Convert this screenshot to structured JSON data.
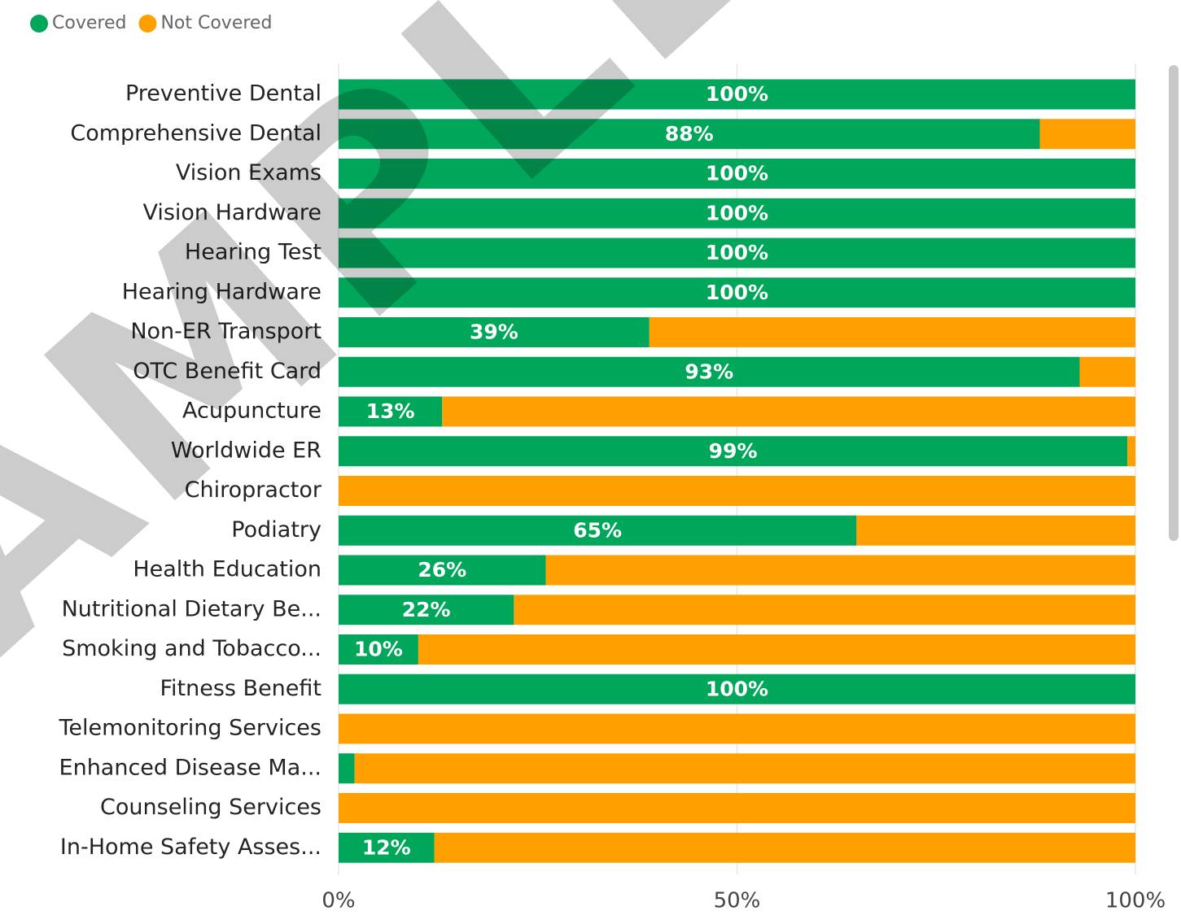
{
  "chart_data": {
    "type": "stacked_barh",
    "watermark": "SAMPLE",
    "categories": [
      "Preventive Dental",
      "Comprehensive Dental",
      "Vision Exams",
      "Vision Hardware",
      "Hearing Test",
      "Hearing Hardware",
      "Non-ER Transport",
      "OTC Benefit Card",
      "Acupuncture",
      "Worldwide ER",
      "Chiropractor",
      "Podiatry",
      "Health Education",
      "Nutritional Dietary Be...",
      "Smoking and Tobacco...",
      "Fitness Benefit",
      "Telemonitoring Services",
      "Enhanced Disease Ma...",
      "Counseling Services",
      "In-Home Safety Asses..."
    ],
    "series": [
      {
        "name": "Covered",
        "color": "#00a65a",
        "values": [
          100,
          88,
          100,
          100,
          100,
          100,
          39,
          93,
          13,
          99,
          0,
          65,
          26,
          22,
          10,
          100,
          0,
          2,
          0,
          12
        ],
        "value_labels": [
          "100%",
          "88%",
          "100%",
          "100%",
          "100%",
          "100%",
          "39%",
          "93%",
          "13%",
          "99%",
          null,
          "65%",
          "26%",
          "22%",
          "10%",
          "100%",
          null,
          null,
          null,
          "12%"
        ]
      },
      {
        "name": "Not Covered",
        "color": "#ffa000",
        "values": [
          0,
          12,
          0,
          0,
          0,
          0,
          61,
          7,
          87,
          1,
          100,
          35,
          74,
          78,
          90,
          0,
          100,
          98,
          100,
          88
        ]
      }
    ],
    "xlim": [
      0,
      100
    ],
    "xticks": [
      {
        "value": 0,
        "label": "0%"
      },
      {
        "value": 50,
        "label": "50%"
      },
      {
        "value": 100,
        "label": "100%"
      }
    ],
    "grid": true,
    "legend": "top-left"
  }
}
